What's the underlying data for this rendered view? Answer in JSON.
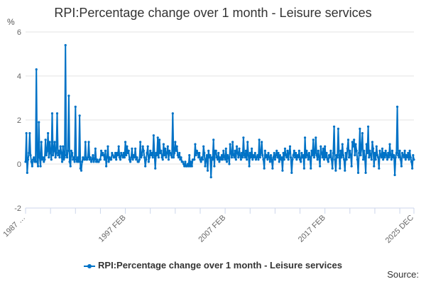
{
  "chart_data": {
    "type": "line",
    "title": "RPI:Percentage change over 1 month - Leisure services",
    "ylabel": "%",
    "ylim": [
      -2,
      6
    ],
    "yticks": [
      6,
      4,
      2,
      0,
      -2
    ],
    "x_start": "1987 JAN",
    "x_end": "2025 DEC",
    "frequency": "monthly",
    "xtick_labels": [
      "1987 …",
      "1997 FEB",
      "2007 FEB",
      "2017 FEB",
      "2025 DEC"
    ],
    "grid": true,
    "legend_position": "bottom",
    "series": [
      {
        "name": "RPI:Percentage change over 1 month - Leisure services",
        "color": "#0072c6",
        "values": [
          0.1,
          1.4,
          -0.4,
          0.2,
          0.5,
          1.4,
          0.4,
          0.1,
          -0.1,
          0.2,
          0.3,
          0.1,
          0.1,
          4.3,
          0.1,
          -0.1,
          1.9,
          0.3,
          -0.1,
          1.0,
          0.2,
          0.3,
          0.1,
          0.2,
          1.1,
          0.4,
          0.6,
          1.4,
          0.3,
          1.0,
          0.5,
          0.2,
          2.3,
          0.4,
          0.6,
          1.0,
          0.3,
          0.5,
          2.3,
          0.4,
          0.6,
          0.3,
          0.8,
          0.5,
          0.1,
          0.8,
          0.2,
          0.3,
          5.4,
          0.4,
          0.3,
          0.6,
          3.1,
          0.1,
          -0.1,
          0.6,
          0.5,
          0.2,
          0.3,
          0.1,
          2.6,
          0.2,
          0.1,
          0.3,
          0.1,
          2.2,
          -0.2,
          -0.3,
          0.1,
          0.3,
          0.2,
          0.2,
          1.0,
          0.2,
          0.2,
          0.3,
          1.0,
          0.2,
          0.3,
          0.1,
          0.2,
          0.4,
          0.1,
          0.2,
          0.7,
          0.1,
          0.2,
          0.1,
          0.1,
          0.2,
          0.2,
          0.6,
          0.4,
          0.5,
          0.4,
          0.2,
          0.6,
          -0.1,
          0.3,
          0.8,
          0.1,
          0.3,
          0.2,
          0.2,
          0.5,
          0.4,
          0.3,
          0.3,
          0.5,
          0.2,
          0.5,
          0.4,
          0.8,
          0.3,
          0.2,
          0.5,
          0.4,
          0.3,
          0.5,
          0.3,
          1.0,
          0.4,
          0.8,
          0.5,
          0.6,
          0.2,
          0.1,
          0.3,
          0.7,
          0.2,
          0.4,
          0.3,
          0.7,
          0.2,
          0.3,
          0.1,
          0.1,
          0.2,
          1.0,
          0.3,
          0.4,
          0.8,
          0.6,
          0.3,
          -0.1,
          0.2,
          0.5,
          0.8,
          0.1,
          0.3,
          0.6,
          0.4,
          0.5,
          0.3,
          1.3,
          0.4,
          -0.2,
          0.5,
          0.4,
          1.2,
          0.3,
          1.1,
          0.5,
          0.6,
          0.3,
          0.2,
          0.9,
          0.4,
          0.7,
          0.3,
          0.5,
          0.8,
          0.2,
          0.6,
          0.5,
          0.4,
          0.3,
          2.3,
          0.3,
          0.5,
          1.0,
          0.6,
          0.8,
          0.4,
          0.3,
          0.5,
          0.2,
          0.3,
          0.1,
          0.1,
          0.0,
          -0.1,
          0.1,
          -0.1,
          -0.1,
          0.0,
          -0.1,
          0.4,
          -0.1,
          0.1,
          -0.1,
          0.2,
          0.2,
          0.2,
          0.9,
          0.4,
          0.6,
          0.5,
          0.3,
          0.5,
          0.2,
          0.1,
          0.3,
          0.2,
          0.8,
          0.5,
          -0.1,
          0.2,
          0.4,
          -0.3,
          0.6,
          0.3,
          0.4,
          -0.6,
          0.3,
          0.2,
          1.1,
          -0.1,
          0.6,
          0.6,
          0.3,
          0.2,
          0.5,
          0.1,
          0.3,
          0.2,
          0.4,
          0.2,
          0.6,
          0.3,
          0.2,
          0.7,
          0.1,
          0.4,
          0.3,
          0.0,
          0.9,
          0.5,
          0.3,
          1.0,
          0.4,
          0.3,
          0.6,
          0.2,
          0.8,
          0.5,
          0.3,
          0.7,
          0.4,
          0.2,
          0.5,
          0.3,
          1.2,
          0.4,
          0.3,
          0.6,
          0.2,
          1.0,
          0.4,
          -0.1,
          0.5,
          0.3,
          0.7,
          0.2,
          0.4,
          0.3,
          0.5,
          0.2,
          0.3,
          0.4,
          0.2,
          1.1,
          0.3,
          0.5,
          1.0,
          0.4,
          0.2,
          -0.2,
          0.6,
          0.3,
          0.4,
          0.2,
          0.5,
          0.3,
          0.1,
          0.4,
          0.2,
          -0.2,
          0.3,
          0.5,
          0.2,
          0.4,
          0.6,
          0.3,
          0.5,
          0.1,
          0.4,
          0.2,
          0.3,
          -0.3,
          0.5,
          0.2,
          0.7,
          0.4,
          0.3,
          0.6,
          0.2,
          0.5,
          0.8,
          0.3,
          -0.4,
          0.2,
          0.4,
          0.6,
          0.3,
          0.5,
          0.2,
          0.4,
          0.3,
          0.6,
          0.2,
          0.1,
          0.5,
          0.3,
          0.4,
          -0.2,
          1.2,
          0.3,
          0.6,
          0.4,
          0.2,
          0.5,
          0.3,
          -0.2,
          0.6,
          0.4,
          1.1,
          0.3,
          0.5,
          1.2,
          0.4,
          0.2,
          0.6,
          0.3,
          -0.1,
          0.8,
          0.5,
          0.3,
          0.7,
          0.2,
          0.8,
          0.3,
          0.5,
          0.2,
          0.1,
          0.4,
          0.3,
          0.6,
          0.2,
          -0.2,
          0.5,
          1.7,
          0.2,
          -0.3,
          0.4,
          0.3,
          1.6,
          0.4,
          -0.2,
          0.6,
          0.3,
          0.9,
          0.4,
          0.2,
          -0.3,
          0.5,
          0.2,
          0.7,
          1.1,
          0.3,
          0.6,
          0.4,
          -0.1,
          1.0,
          0.8,
          1.1,
          0.4,
          0.9,
          0.6,
          0.2,
          -0.4,
          0.5,
          1.6,
          0.4,
          0.7,
          1.4,
          0.2,
          0.6,
          0.3,
          -0.4,
          0.9,
          0.5,
          1.7,
          0.3,
          0.6,
          0.4,
          0.2,
          1.0,
          0.7,
          -0.1,
          0.5,
          0.2,
          0.8,
          0.4,
          0.3,
          -0.2,
          0.6,
          0.4,
          0.3,
          0.7,
          0.2,
          0.5,
          0.3,
          0.6,
          0.4,
          0.2,
          0.5,
          0.3,
          0.9,
          0.4,
          0.2,
          0.6,
          0.3,
          0.4,
          -0.5,
          0.3,
          0.5,
          2.6,
          0.4,
          0.3,
          0.6,
          0.2,
          -0.1,
          0.5,
          0.4,
          0.3,
          0.6,
          0.2,
          0.4,
          0.3,
          0.5,
          0.2,
          0.6,
          0.3,
          0.1,
          -0.2,
          0.4,
          0.2
        ]
      }
    ]
  },
  "source_label": "Source:"
}
